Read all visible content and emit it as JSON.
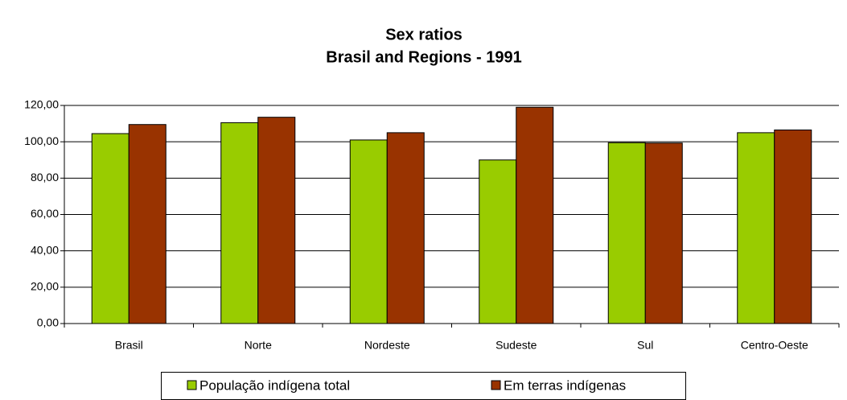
{
  "chart_data": {
    "type": "bar",
    "title": "Sex ratios",
    "subtitle": "Brasil and Regions - 1991",
    "categories": [
      "Brasil",
      "Norte",
      "Nordeste",
      "Sudeste",
      "Sul",
      "Centro-Oeste"
    ],
    "series": [
      {
        "name": "População indígena total",
        "color": "#99cc00",
        "values": [
          104.5,
          110.5,
          101,
          90,
          99.5,
          105
        ]
      },
      {
        "name": "Em terras indígenas",
        "color": "#993300",
        "values": [
          109.5,
          113.5,
          105,
          119,
          99.3,
          106.5
        ]
      }
    ],
    "ylim": [
      0,
      120
    ],
    "yticks": [
      {
        "value": 0,
        "label": "0,00"
      },
      {
        "value": 20,
        "label": "20,00"
      },
      {
        "value": 40,
        "label": "40,00"
      },
      {
        "value": 60,
        "label": "60,00"
      },
      {
        "value": 80,
        "label": "80,00"
      },
      {
        "value": 100,
        "label": "100,00"
      },
      {
        "value": 120,
        "label": "120,00"
      }
    ],
    "grid": true,
    "legend": "bottom"
  }
}
